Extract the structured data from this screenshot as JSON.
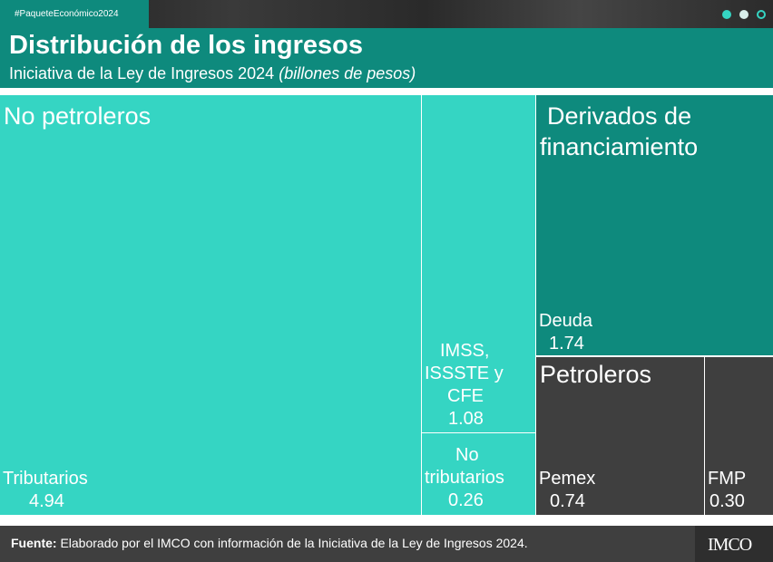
{
  "hashtag": "#PaqueteEconómico2024",
  "header": {
    "title": "Distribución de los ingresos",
    "subtitle": "Iniciativa de la Ley de Ingresos 2024",
    "unit": "(billones de pesos)"
  },
  "colors": {
    "no_petroleros": "#35d5c3",
    "derivados": "#0e8a7d",
    "petroleros": "#3f3f3f",
    "brand": "#0e8a7d"
  },
  "chart_data": {
    "type": "treemap",
    "groups": [
      {
        "name": "No petroleros",
        "color": "#35d5c3",
        "items": [
          {
            "name": "Tributarios",
            "value": 4.94
          },
          {
            "name": "IMSS, ISSSTE y CFE",
            "value": 1.08
          },
          {
            "name": "No tributarios",
            "value": 0.26
          }
        ]
      },
      {
        "name": "Derivados de financiamiento",
        "color": "#0e8a7d",
        "items": [
          {
            "name": "Deuda",
            "value": 1.74
          }
        ]
      },
      {
        "name": "Petroleros",
        "color": "#3f3f3f",
        "items": [
          {
            "name": "Pemex",
            "value": 0.74
          },
          {
            "name": "FMP",
            "value": 0.3
          }
        ]
      }
    ]
  },
  "labels": {
    "group_no_petroleros": "No petroleros",
    "group_derivados_1": "Derivados de",
    "group_derivados_2": "financiamiento",
    "group_petroleros": "Petroleros",
    "tributarios": "Tributarios",
    "tributarios_value": "4.94",
    "imss_1": "IMSS,",
    "imss_2": "ISSSTE y",
    "imss_3": "CFE",
    "imss_value": "1.08",
    "notrib_1": "No",
    "notrib_2": "tributarios",
    "notrib_value": "0.26",
    "deuda": "Deuda",
    "deuda_value": "1.74",
    "pemex": "Pemex",
    "pemex_value": "0.74",
    "fmp": "FMP",
    "fmp_value": "0.30"
  },
  "footer": {
    "source_label": "Fuente:",
    "source_text": " Elaborado por el IMCO con información de la Iniciativa de la Ley de Ingresos 2024.",
    "logo": "IMCO"
  }
}
